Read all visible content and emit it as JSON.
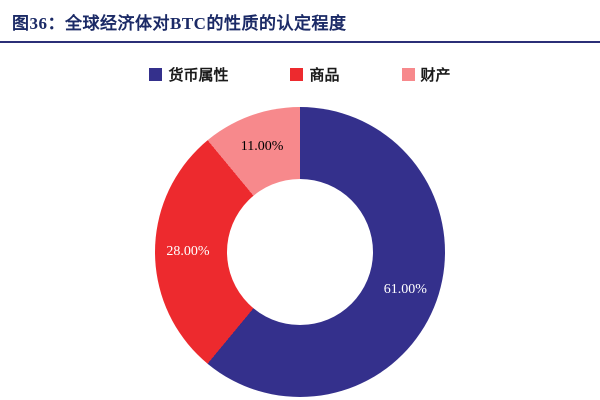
{
  "header": {
    "figure_title": "图36：全球经济体对BTC的性质的认定程度"
  },
  "accent": {
    "title_color": "#1b2a66",
    "rule_color": "#2b2f77",
    "background": "#ffffff"
  },
  "chart_data": {
    "type": "pie",
    "subtype": "donut",
    "title": "图36：全球经济体对BTC的性质的认定程度",
    "categories": [
      "货币属性",
      "商品",
      "财产"
    ],
    "values": [
      61,
      28,
      11
    ],
    "data_labels": [
      "61.00%",
      "28.00%",
      "11.00%"
    ],
    "colors": [
      "#34308c",
      "#ed2a2e",
      "#f7898c"
    ],
    "data_label_colors": [
      "#ffffff",
      "#ffffff",
      "#000000"
    ],
    "legend_position": "top",
    "start_angle_deg": 0,
    "direction": "clockwise",
    "hole_ratio": 0.5
  }
}
